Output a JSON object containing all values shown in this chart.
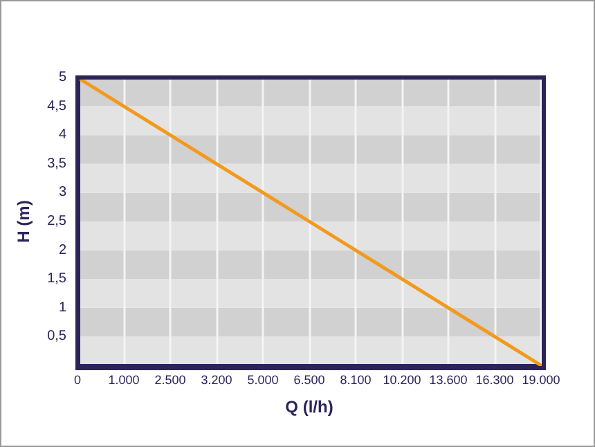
{
  "chart_data": {
    "type": "line",
    "xlabel": "Q (l/h)",
    "ylabel": "H (m)",
    "categories": [
      "0",
      "1.000",
      "2.500",
      "3.200",
      "5.000",
      "6.500",
      "8.100",
      "10.200",
      "13.600",
      "16.300",
      "19.000"
    ],
    "series": [
      {
        "color": "#f29a1e",
        "values": [
          5,
          4.5,
          4,
          3.5,
          3,
          2.5,
          2,
          1.5,
          1,
          0.5,
          0
        ]
      }
    ],
    "ylim": [
      0,
      5
    ],
    "yticks": [
      {
        "value": 0,
        "label": null
      },
      {
        "value": 0.5,
        "label": "0,5"
      },
      1,
      {
        "value": 1.5,
        "label": "1,5"
      },
      2,
      {
        "value": 2.5,
        "label": "2,5"
      },
      3,
      {
        "value": 3.5,
        "label": "3,5"
      },
      4,
      {
        "value": 4.5,
        "label": "4,5"
      },
      5
    ],
    "grid": true,
    "marker": "none",
    "line_style": "solid"
  }
}
